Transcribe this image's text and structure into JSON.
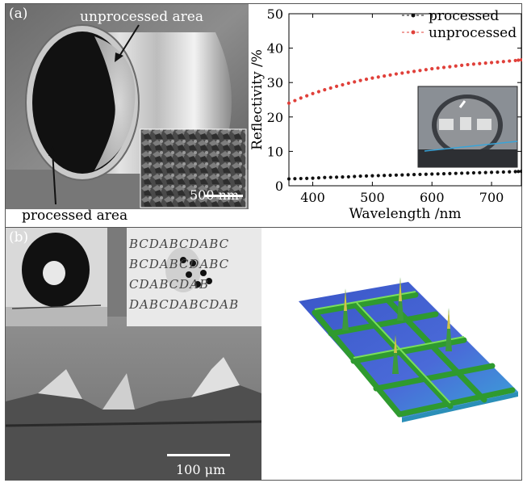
{
  "panel_a": {
    "tag": "(a)",
    "photo_label_top": "unprocessed area",
    "photo_label_bottom": "processed area",
    "sem_scale": "500 nm"
  },
  "panel_b": {
    "tag": "(b)",
    "letters_rows": [
      "BCDABCDABC",
      "BCDABCDABC",
      "CDABCDAB",
      "DABCDABCDAB"
    ],
    "sem_scale": "100 μm"
  },
  "colors": {
    "processed": "#111111",
    "unprocessed": "#e0403a"
  },
  "chart_data": {
    "type": "scatter",
    "title": "",
    "xlabel": "Wavelength /nm",
    "ylabel": "Reflectivity /%",
    "xlim": [
      360,
      750
    ],
    "ylim": [
      0,
      50
    ],
    "xticks": [
      400,
      500,
      600,
      700
    ],
    "yticks": [
      0,
      10,
      20,
      30,
      40,
      50
    ],
    "legend_position": "top-right",
    "grid": false,
    "series": [
      {
        "name": "processed",
        "x": [
          360,
          380,
          400,
          420,
          440,
          460,
          480,
          500,
          520,
          540,
          560,
          580,
          600,
          620,
          640,
          660,
          680,
          700,
          720,
          740,
          750
        ],
        "y": [
          2.0,
          2.1,
          2.2,
          2.4,
          2.5,
          2.6,
          2.8,
          2.9,
          3.0,
          3.1,
          3.2,
          3.3,
          3.4,
          3.5,
          3.6,
          3.7,
          3.8,
          3.9,
          4.0,
          4.1,
          4.2
        ]
      },
      {
        "name": "unprocessed",
        "x": [
          360,
          380,
          400,
          420,
          440,
          460,
          480,
          500,
          520,
          540,
          560,
          580,
          600,
          620,
          640,
          660,
          680,
          700,
          720,
          740,
          750
        ],
        "y": [
          24.0,
          25.5,
          26.8,
          27.9,
          28.9,
          29.8,
          30.6,
          31.3,
          31.9,
          32.5,
          33.0,
          33.5,
          34.0,
          34.4,
          34.8,
          35.2,
          35.5,
          35.8,
          36.1,
          36.4,
          36.6
        ]
      }
    ]
  }
}
